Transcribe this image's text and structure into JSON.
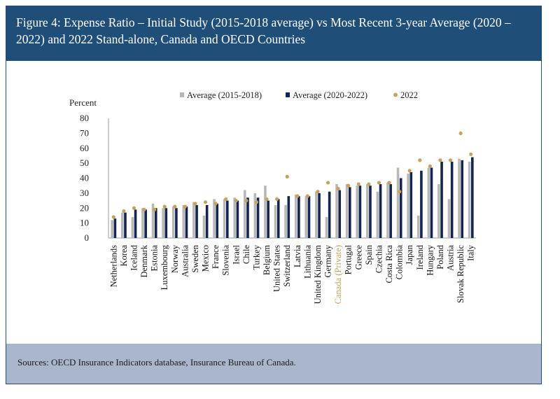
{
  "header": {
    "title": "Figure 4: Expense Ratio – Initial Study (2015-2018 average) vs Most Recent 3-year Average (2020 – 2022) and 2022 Stand-alone, Canada and OECD Countries"
  },
  "footer": {
    "sources": "Sources: OECD Insurance Indicators database, Insurance Bureau of Canada."
  },
  "colors": {
    "header_bg": "#1f4e79",
    "footer_bg": "#a9b6cc",
    "series_avg_2015_2018": "#b8b8b8",
    "series_avg_2020_2022": "#14264f",
    "series_2022": "#c9a25a",
    "highlight_label": "#c9a25a"
  },
  "chart_data": {
    "type": "bar",
    "ylabel": "Percent",
    "ylim": [
      0,
      80
    ],
    "yticks": [
      0,
      10,
      20,
      30,
      40,
      50,
      60,
      70,
      80
    ],
    "grid": false,
    "legend_position": "top",
    "highlight_category": "Canada (Private)",
    "categories": [
      "Netherlands",
      "Korea",
      "Iceland",
      "Denmark",
      "Estonia",
      "Luxembourg",
      "Norway",
      "Australia",
      "Sweden",
      "Mexico",
      "France",
      "Slovenia",
      "Israel",
      "Chile",
      "Turkey",
      "Belgium",
      "United States",
      "Switzerland",
      "Latvia",
      "Lithuania",
      "United Kingdom",
      "Germany",
      "Canada (Private)",
      "Portugal",
      "Greece",
      "Spain",
      "Czechia",
      "Costa Rica",
      "Colombia",
      "Japan",
      "Ireland",
      "Hungary",
      "Poland",
      "Austria",
      "Slovak Republic",
      "Italy"
    ],
    "series": [
      {
        "name": "Average (2015-2018)",
        "style": "bar",
        "values": [
          12,
          17,
          14,
          20,
          23,
          20,
          21,
          22,
          24,
          15,
          26,
          26,
          27,
          32,
          30,
          35,
          22,
          22,
          29,
          28,
          31,
          14,
          36,
          36,
          35,
          36,
          31,
          37,
          47,
          43,
          15,
          47,
          36,
          26,
          53,
          51
        ]
      },
      {
        "name": "Average (2020-2022)",
        "style": "bar",
        "values": [
          13,
          17,
          19,
          19,
          20,
          20,
          20,
          21,
          22,
          22,
          23,
          25,
          25,
          27,
          27,
          25,
          26,
          28,
          28,
          28,
          30,
          31,
          32,
          34,
          35,
          35,
          36,
          36,
          40,
          44,
          45,
          47,
          51,
          51,
          52,
          54
        ]
      },
      {
        "name": "2022",
        "style": "dot",
        "values": [
          14,
          18,
          20,
          19,
          19,
          21,
          21,
          21,
          23,
          24,
          23,
          26,
          25,
          25,
          24,
          26,
          26,
          41,
          28,
          28,
          31,
          37,
          33,
          35,
          36,
          36,
          37,
          37,
          31,
          45,
          52,
          48,
          52,
          52,
          70,
          56
        ]
      }
    ]
  }
}
